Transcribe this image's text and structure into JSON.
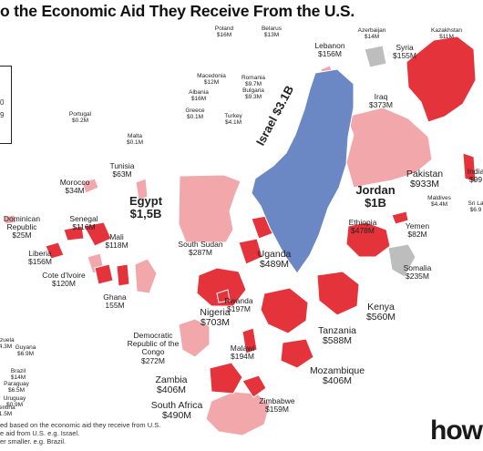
{
  "title": "o the Economic Aid They Receive From the U.S.",
  "legend": {
    "line1": "0",
    "line2": "9"
  },
  "footnote": [
    "ed based on the economic aid they receive from U.S.",
    "e aid from U.S. e.g. Israel.",
    "er smaller. e.g. Brazil."
  ],
  "brand": "how",
  "colors": {
    "high": "#e5333c",
    "medium": "#f2a8aa",
    "israel": "#6b88c4",
    "neutral": "#bdbdbd",
    "border": "#ffffff"
  },
  "countries": [
    {
      "name": "Israel",
      "value": "$3.1B",
      "tier": "israel"
    },
    {
      "name": "Egypt",
      "value": "$1,5B",
      "tier": "medium"
    },
    {
      "name": "Jordan",
      "value": "$1B",
      "tier": "medium"
    },
    {
      "name": "Pakistan",
      "value": "$933M",
      "tier": "high"
    },
    {
      "name": "Nigeria",
      "value": "$703M",
      "tier": "high"
    },
    {
      "name": "Tanzania",
      "value": "$588M",
      "tier": "high"
    },
    {
      "name": "Kenya",
      "value": "$560M",
      "tier": "high"
    },
    {
      "name": "South Africa",
      "value": "$490M",
      "tier": "medium"
    },
    {
      "name": "Uganda",
      "value": "$489M",
      "tier": "high"
    },
    {
      "name": "Ethiopia",
      "value": "$478M",
      "tier": "high"
    },
    {
      "name": "Zambia",
      "value": "$406M",
      "tier": "high"
    },
    {
      "name": "Mozambique",
      "value": "$406M",
      "tier": "high"
    },
    {
      "name": "Iraq",
      "value": "$373M",
      "tier": "medium"
    },
    {
      "name": "South Sudan",
      "value": "$287M",
      "tier": "high"
    },
    {
      "name": "Democratic Republic of the Congo",
      "value": "$272M",
      "tier": "medium"
    },
    {
      "name": "Somalia",
      "value": "$235M",
      "tier": "neutral"
    },
    {
      "name": "Rwanda",
      "value": "$197M",
      "tier": "high"
    },
    {
      "name": "Malawi",
      "value": "$194M",
      "tier": "high"
    },
    {
      "name": "Zimbabwe",
      "value": "$159M",
      "tier": "high"
    },
    {
      "name": "Lebanon",
      "value": "$156M",
      "tier": "medium"
    },
    {
      "name": "Liberia",
      "value": "$156M",
      "tier": "high"
    },
    {
      "name": "Syria",
      "value": "$155M",
      "tier": "neutral"
    },
    {
      "name": "Ghana",
      "value": "155M",
      "tier": "high"
    },
    {
      "name": "Cote d'Ivoire",
      "value": "$120M",
      "tier": "high"
    },
    {
      "name": "Mali",
      "value": "$118M",
      "tier": "high"
    },
    {
      "name": "Senegal",
      "value": "$116M",
      "tier": "high"
    },
    {
      "name": "Yemen",
      "value": "$82M",
      "tier": "high"
    },
    {
      "name": "Tunisia",
      "value": "$63M",
      "tier": "medium"
    },
    {
      "name": "Morocco",
      "value": "$34M",
      "tier": "medium"
    },
    {
      "name": "Dominican Republic",
      "value": "$25M",
      "tier": "medium"
    },
    {
      "name": "Poland",
      "value": "$16M",
      "tier": "medium"
    },
    {
      "name": "Belarus",
      "value": "$13M",
      "tier": "medium"
    },
    {
      "name": "Azerbaijan",
      "value": "$14M",
      "tier": "medium"
    },
    {
      "name": "Kazakhstan",
      "value": "$11M",
      "tier": "medium"
    },
    {
      "name": "Macedonia",
      "value": "$12M",
      "tier": "medium"
    },
    {
      "name": "Romania",
      "value": "$9.7M",
      "tier": "medium"
    },
    {
      "name": "Bulgaria",
      "value": "$9.3M",
      "tier": "medium"
    },
    {
      "name": "Albania",
      "value": "$16M",
      "tier": "medium"
    },
    {
      "name": "Greece",
      "value": "$0.1M",
      "tier": "medium"
    },
    {
      "name": "Turkey",
      "value": "$4.1M",
      "tier": "medium"
    },
    {
      "name": "Portugal",
      "value": "$0.2M",
      "tier": "medium"
    },
    {
      "name": "Malta",
      "value": "$0.1M",
      "tier": "medium"
    },
    {
      "name": "India",
      "value": "$99",
      "tier": "high"
    },
    {
      "name": "Maldives",
      "value": "$4.4M",
      "tier": "medium"
    },
    {
      "name": "Sri La",
      "value": "$6.9",
      "tier": "medium"
    },
    {
      "name": "Guyana",
      "value": "$6.9M",
      "tier": "medium"
    },
    {
      "name": "Brazil",
      "value": "$14M",
      "tier": "medium"
    },
    {
      "name": "Paraguay",
      "value": "$6.5M",
      "tier": "medium"
    },
    {
      "name": "Uruguay",
      "value": "$0.9M",
      "tier": "medium"
    },
    {
      "name": "ezuela",
      "value": "4.3M",
      "tier": "medium"
    },
    {
      "name": "gentina",
      "value": "1.5M",
      "tier": "medium"
    }
  ]
}
